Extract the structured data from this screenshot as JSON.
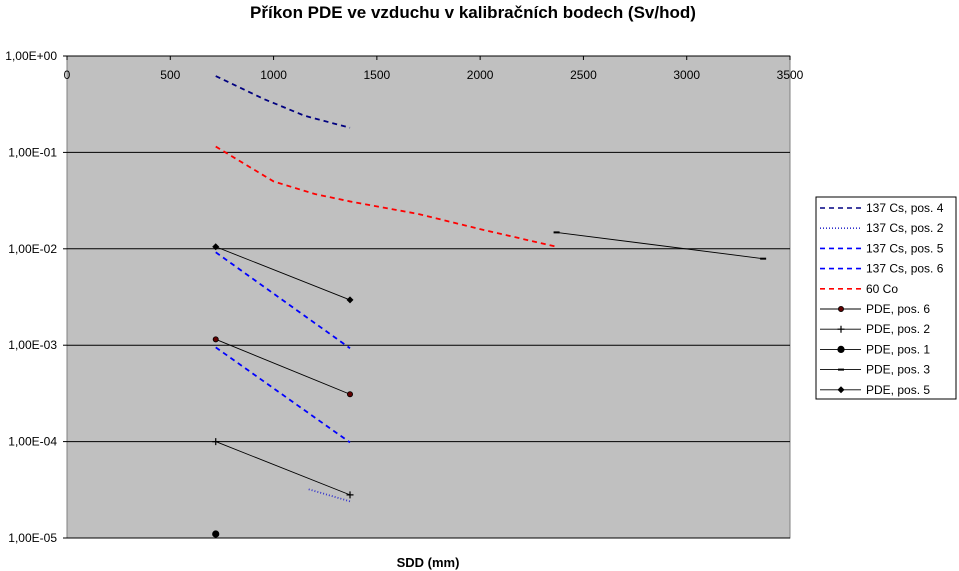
{
  "chart_data": {
    "type": "line",
    "title": "Příkon PDE ve vzduchu v kalibračních bodech (Sv/hod)",
    "xlabel": "SDD (mm)",
    "ylabel": "",
    "xlim": [
      0,
      3500
    ],
    "ylim": [
      1e-05,
      1
    ],
    "yscale": "log",
    "x_axis_position": "top",
    "x_ticks": [
      0,
      500,
      1000,
      1500,
      2000,
      2500,
      3000,
      3500
    ],
    "x_tick_labels": [
      "0",
      "500",
      "1000",
      "1500",
      "2000",
      "2500",
      "3000",
      "3500"
    ],
    "y_ticks": [
      1,
      0.1,
      0.01,
      0.001,
      0.0001,
      1e-05
    ],
    "y_tick_labels": [
      "1,00E+00",
      "1,00E-01",
      "1,00E-02",
      "1,00E-03",
      "1,00E-04",
      "1,00E-05"
    ],
    "grid": "horizontal",
    "plot_background": "#c0c0c0",
    "legend": "right",
    "series": [
      {
        "name": "137 Cs, pos. 4",
        "color": "#000080",
        "style": "dashed",
        "marker": "none",
        "x": [
          720,
          950,
          1150,
          1370
        ],
        "y": [
          0.62,
          0.36,
          0.24,
          0.18
        ]
      },
      {
        "name": "137 Cs, pos. 2",
        "color": "#3333cc",
        "style": "dotted",
        "marker": "none",
        "x": [
          1170,
          1370
        ],
        "y": [
          3.2e-05,
          2.4e-05
        ]
      },
      {
        "name": "137 Cs, pos. 5",
        "color": "#0000ff",
        "style": "dashed",
        "marker": "none",
        "x": [
          720,
          1370
        ],
        "y": [
          0.00095,
          9.8e-05
        ]
      },
      {
        "name": "137 Cs, pos. 6",
        "color": "#0000ff",
        "style": "dashed",
        "marker": "none",
        "x": [
          720,
          1370
        ],
        "y": [
          0.0092,
          0.00093
        ]
      },
      {
        "name": "60 Co",
        "color": "#ff0000",
        "style": "dashed",
        "marker": "none",
        "x": [
          720,
          1000,
          1200,
          1370,
          1700,
          2000,
          2370
        ],
        "y": [
          0.115,
          0.05,
          0.037,
          0.031,
          0.023,
          0.016,
          0.0105
        ]
      },
      {
        "name": "PDE, pos. 6",
        "color": "#000000",
        "style": "solid",
        "marker": "circle-small",
        "x": [
          720,
          1370
        ],
        "y": [
          0.00115,
          0.00031
        ]
      },
      {
        "name": "PDE, pos. 2",
        "color": "#000000",
        "style": "solid",
        "marker": "plus",
        "x": [
          720,
          1370
        ],
        "y": [
          0.0001,
          2.8e-05
        ]
      },
      {
        "name": "PDE, pos. 1",
        "color": "#000000",
        "style": "solid",
        "marker": "circle-large",
        "x": [
          720
        ],
        "y": [
          1.1e-05
        ]
      },
      {
        "name": "PDE, pos. 3",
        "color": "#000000",
        "style": "solid",
        "marker": "dash",
        "x": [
          2370,
          3370
        ],
        "y": [
          0.0148,
          0.0079
        ]
      },
      {
        "name": "PDE, pos. 5",
        "color": "#000000",
        "style": "solid",
        "marker": "diamond",
        "x": [
          720,
          1370
        ],
        "y": [
          0.0105,
          0.00295
        ]
      }
    ]
  }
}
